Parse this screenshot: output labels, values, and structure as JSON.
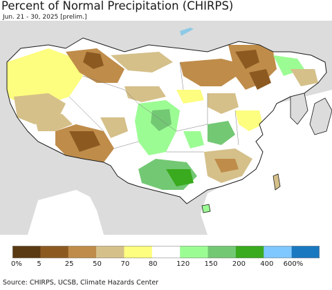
{
  "header": {
    "title": "Percent of Normal Precipitation (CHIRPS)",
    "subtitle": "Jun. 21 - 30, 2025 [prelim.]"
  },
  "map": {
    "region": "China and surrounding region",
    "colors": {
      "ocean": "#ffffff",
      "outside_land": "#dcdcdc",
      "china_base": "#ffffff"
    }
  },
  "legend": {
    "colors": [
      "#5a3a13",
      "#8c5a21",
      "#bf8c4a",
      "#d5c08a",
      "#fdfd7f",
      "#ffffff",
      "#9cfc94",
      "#73c874",
      "#3aaa1e",
      "#7fc7ff",
      "#1a78c0"
    ],
    "labels": [
      "0%",
      "5",
      "25",
      "50",
      "70",
      "80",
      "120",
      "150",
      "200",
      "400",
      "600%"
    ]
  },
  "footer": {
    "source": "Source: CHIRPS, UCSB, Climate Hazards Center"
  }
}
